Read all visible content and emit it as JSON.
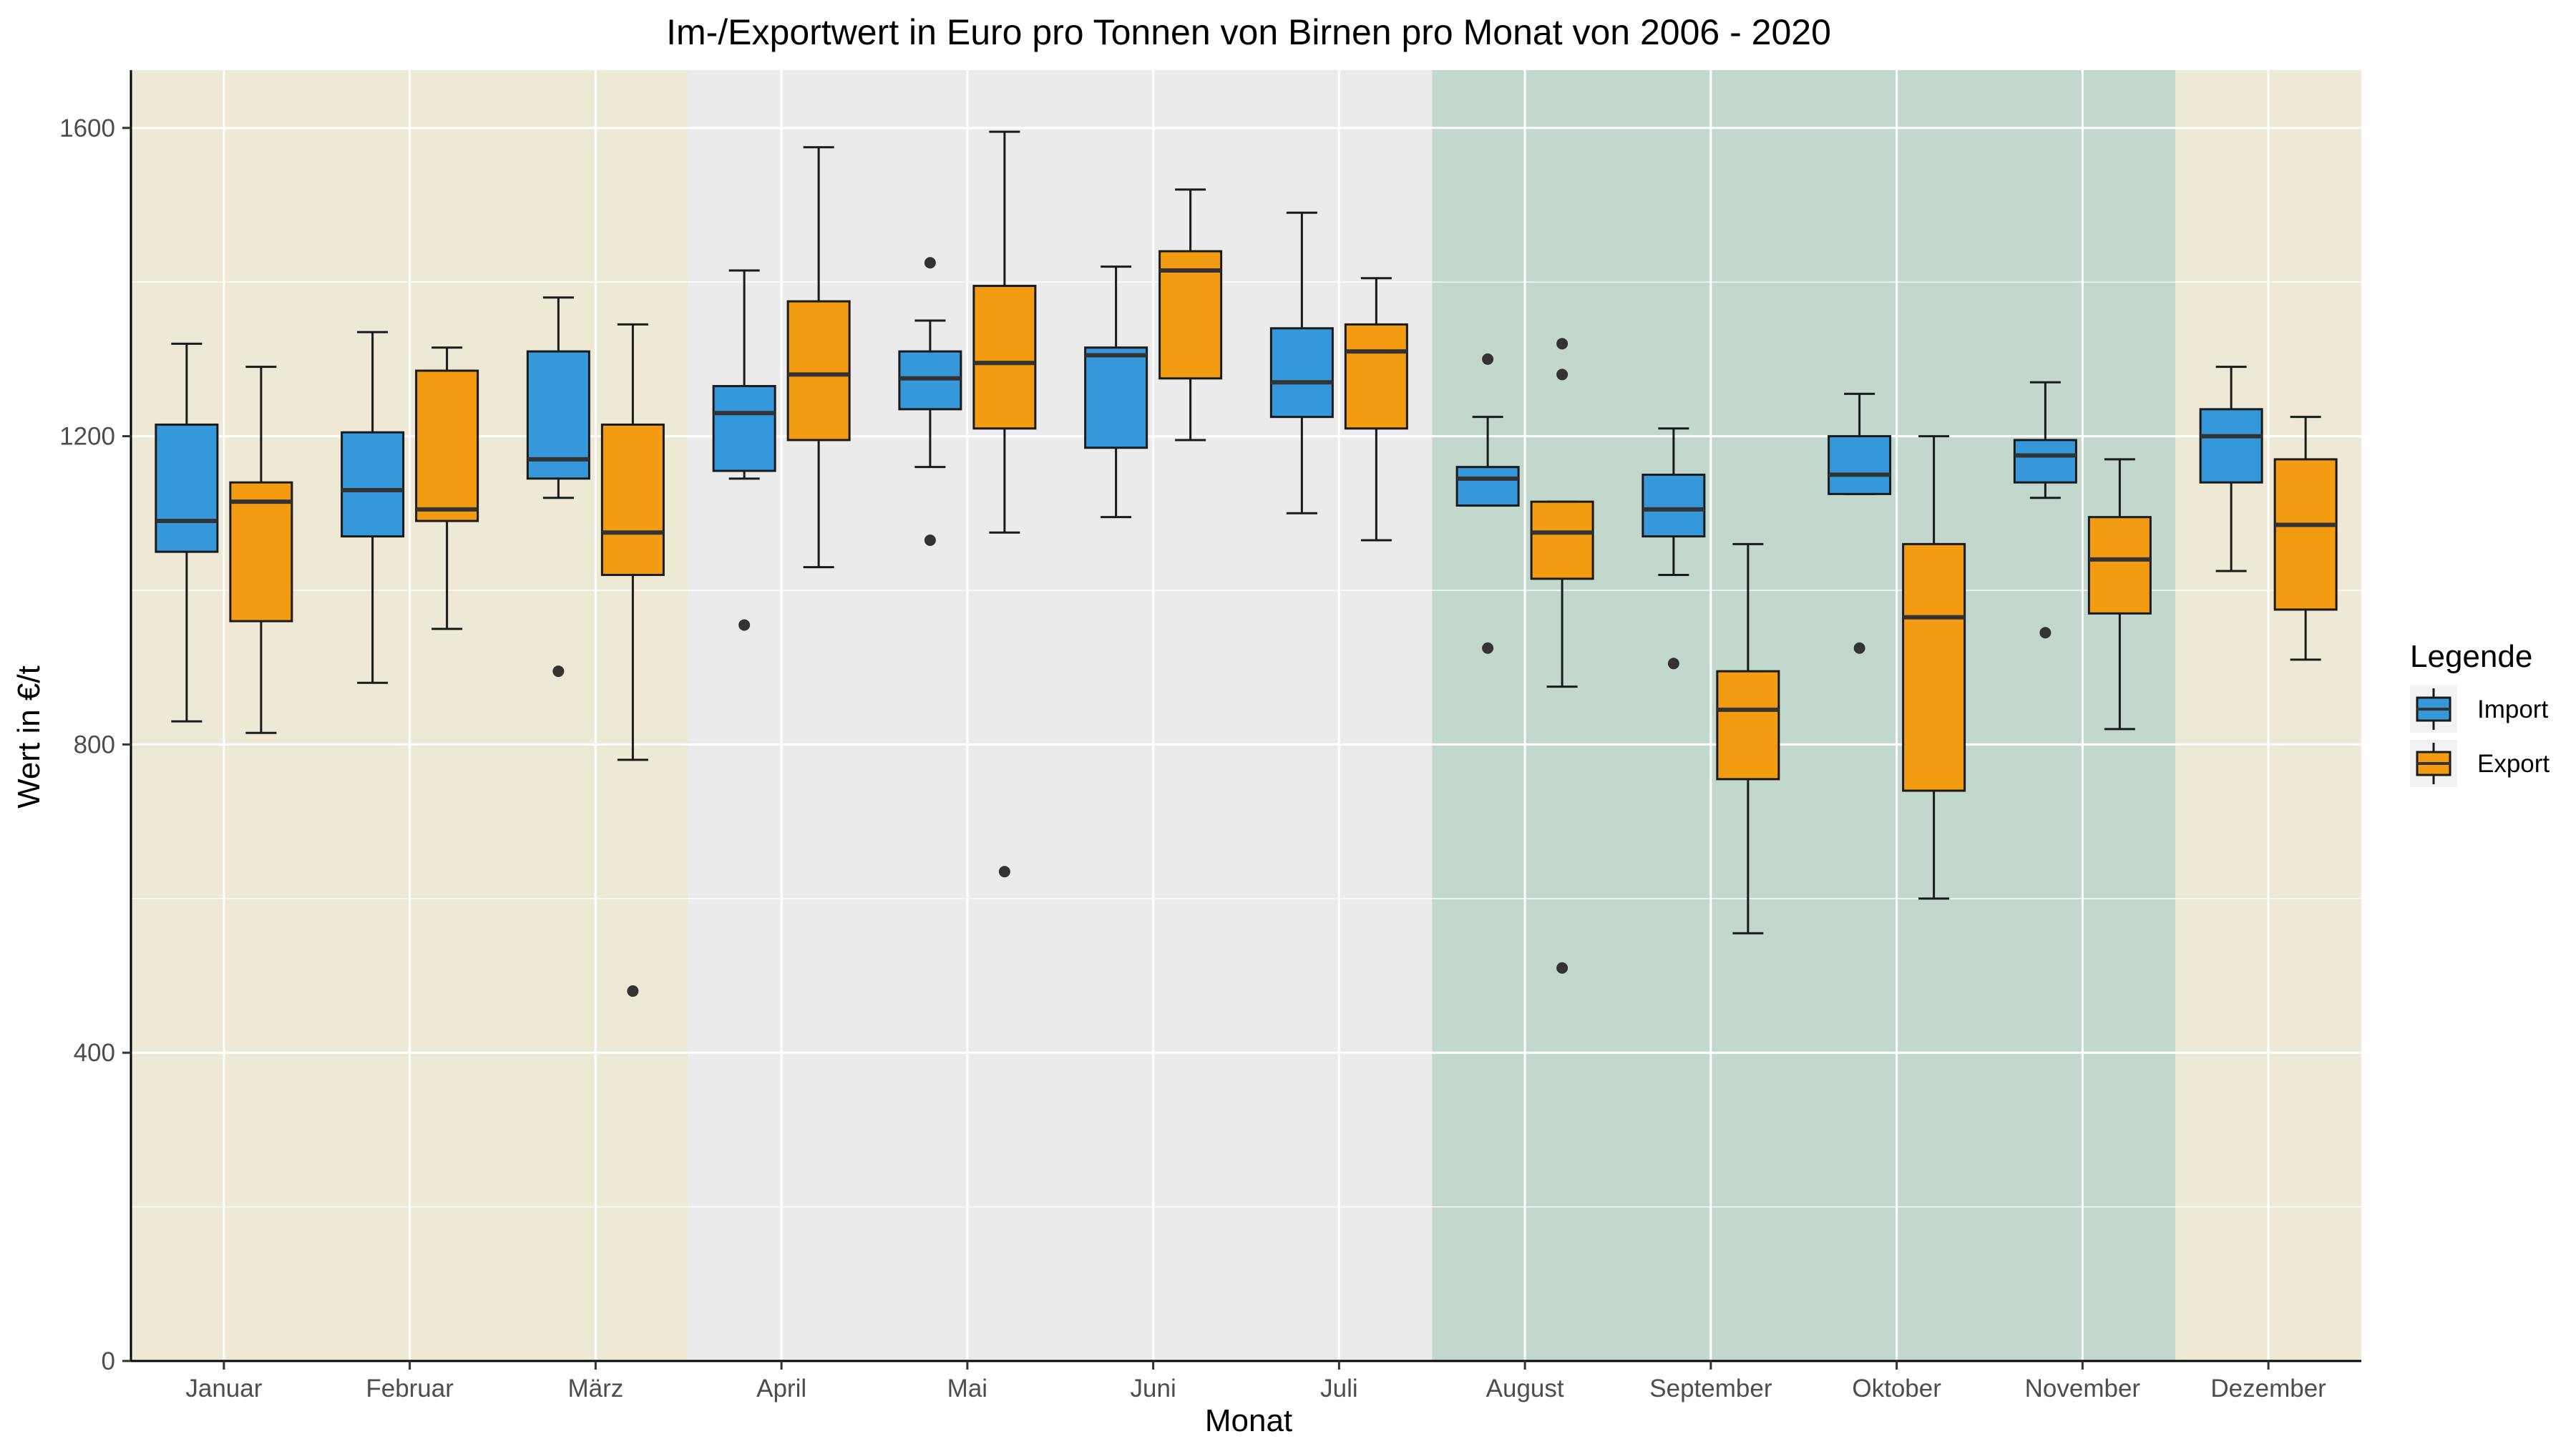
{
  "chart_data": {
    "type": "boxplot",
    "title": "Im-/Exportwert in Euro pro Tonnen von Birnen pro Monat von 2006 - 2020",
    "xlabel": "Monat",
    "ylabel": "Wert in €/t",
    "ylim": [
      0,
      1675
    ],
    "yticks": [
      0,
      400,
      800,
      1200,
      1600
    ],
    "grid": true,
    "legend_position": "right",
    "legend_title": "Legende",
    "categories": [
      "Januar",
      "Februar",
      "März",
      "April",
      "Mai",
      "Juni",
      "Juli",
      "August",
      "September",
      "Oktober",
      "November",
      "Dezember"
    ],
    "season_bands": [
      {
        "from": 0,
        "to": 2,
        "color": "#ede9d4"
      },
      {
        "from": 3,
        "to": 6,
        "color": "#ebebeb"
      },
      {
        "from": 7,
        "to": 10,
        "color": "#c3d8cd"
      },
      {
        "from": 11,
        "to": 11,
        "color": "#ede9d4"
      }
    ],
    "series": [
      {
        "name": "Import",
        "color": "#3498db",
        "boxes": [
          {
            "low": 830,
            "q1": 1050,
            "median": 1090,
            "q3": 1215,
            "high": 1320,
            "outliers": []
          },
          {
            "low": 880,
            "q1": 1070,
            "median": 1130,
            "q3": 1205,
            "high": 1335,
            "outliers": []
          },
          {
            "low": 1120,
            "q1": 1145,
            "median": 1170,
            "q3": 1310,
            "high": 1380,
            "outliers": [
              895
            ]
          },
          {
            "low": 1145,
            "q1": 1155,
            "median": 1230,
            "q3": 1265,
            "high": 1415,
            "outliers": [
              955
            ]
          },
          {
            "low": 1160,
            "q1": 1235,
            "median": 1275,
            "q3": 1310,
            "high": 1350,
            "outliers": [
              1425,
              1065
            ]
          },
          {
            "low": 1095,
            "q1": 1185,
            "median": 1305,
            "q3": 1315,
            "high": 1420,
            "outliers": []
          },
          {
            "low": 1100,
            "q1": 1225,
            "median": 1270,
            "q3": 1340,
            "high": 1490,
            "outliers": []
          },
          {
            "low": 1110,
            "q1": 1110,
            "median": 1145,
            "q3": 1160,
            "high": 1225,
            "outliers": [
              1300,
              925
            ]
          },
          {
            "low": 1020,
            "q1": 1070,
            "median": 1105,
            "q3": 1150,
            "high": 1210,
            "outliers": [
              905
            ]
          },
          {
            "low": 1125,
            "q1": 1125,
            "median": 1150,
            "q3": 1200,
            "high": 1255,
            "outliers": [
              925
            ]
          },
          {
            "low": 1120,
            "q1": 1140,
            "median": 1175,
            "q3": 1195,
            "high": 1270,
            "outliers": [
              945
            ]
          },
          {
            "low": 1025,
            "q1": 1140,
            "median": 1200,
            "q3": 1235,
            "high": 1290,
            "outliers": []
          }
        ]
      },
      {
        "name": "Export",
        "color": "#f39c12",
        "boxes": [
          {
            "low": 815,
            "q1": 960,
            "median": 1115,
            "q3": 1140,
            "high": 1290,
            "outliers": []
          },
          {
            "low": 950,
            "q1": 1090,
            "median": 1105,
            "q3": 1285,
            "high": 1315,
            "outliers": []
          },
          {
            "low": 780,
            "q1": 1020,
            "median": 1075,
            "q3": 1215,
            "high": 1345,
            "outliers": [
              480
            ]
          },
          {
            "low": 1030,
            "q1": 1195,
            "median": 1280,
            "q3": 1375,
            "high": 1575,
            "outliers": []
          },
          {
            "low": 1075,
            "q1": 1210,
            "median": 1295,
            "q3": 1395,
            "high": 1595,
            "outliers": [
              635
            ]
          },
          {
            "low": 1195,
            "q1": 1275,
            "median": 1415,
            "q3": 1440,
            "high": 1520,
            "outliers": []
          },
          {
            "low": 1065,
            "q1": 1210,
            "median": 1310,
            "q3": 1345,
            "high": 1405,
            "outliers": []
          },
          {
            "low": 875,
            "q1": 1015,
            "median": 1075,
            "q3": 1115,
            "high": 1115,
            "outliers": [
              1320,
              1280,
              510
            ]
          },
          {
            "low": 555,
            "q1": 755,
            "median": 845,
            "q3": 895,
            "high": 1060,
            "outliers": []
          },
          {
            "low": 600,
            "q1": 740,
            "median": 965,
            "q3": 1060,
            "high": 1200,
            "outliers": []
          },
          {
            "low": 820,
            "q1": 970,
            "median": 1040,
            "q3": 1095,
            "high": 1170,
            "outliers": []
          },
          {
            "low": 910,
            "q1": 975,
            "median": 1085,
            "q3": 1170,
            "high": 1225,
            "outliers": []
          }
        ]
      }
    ]
  }
}
